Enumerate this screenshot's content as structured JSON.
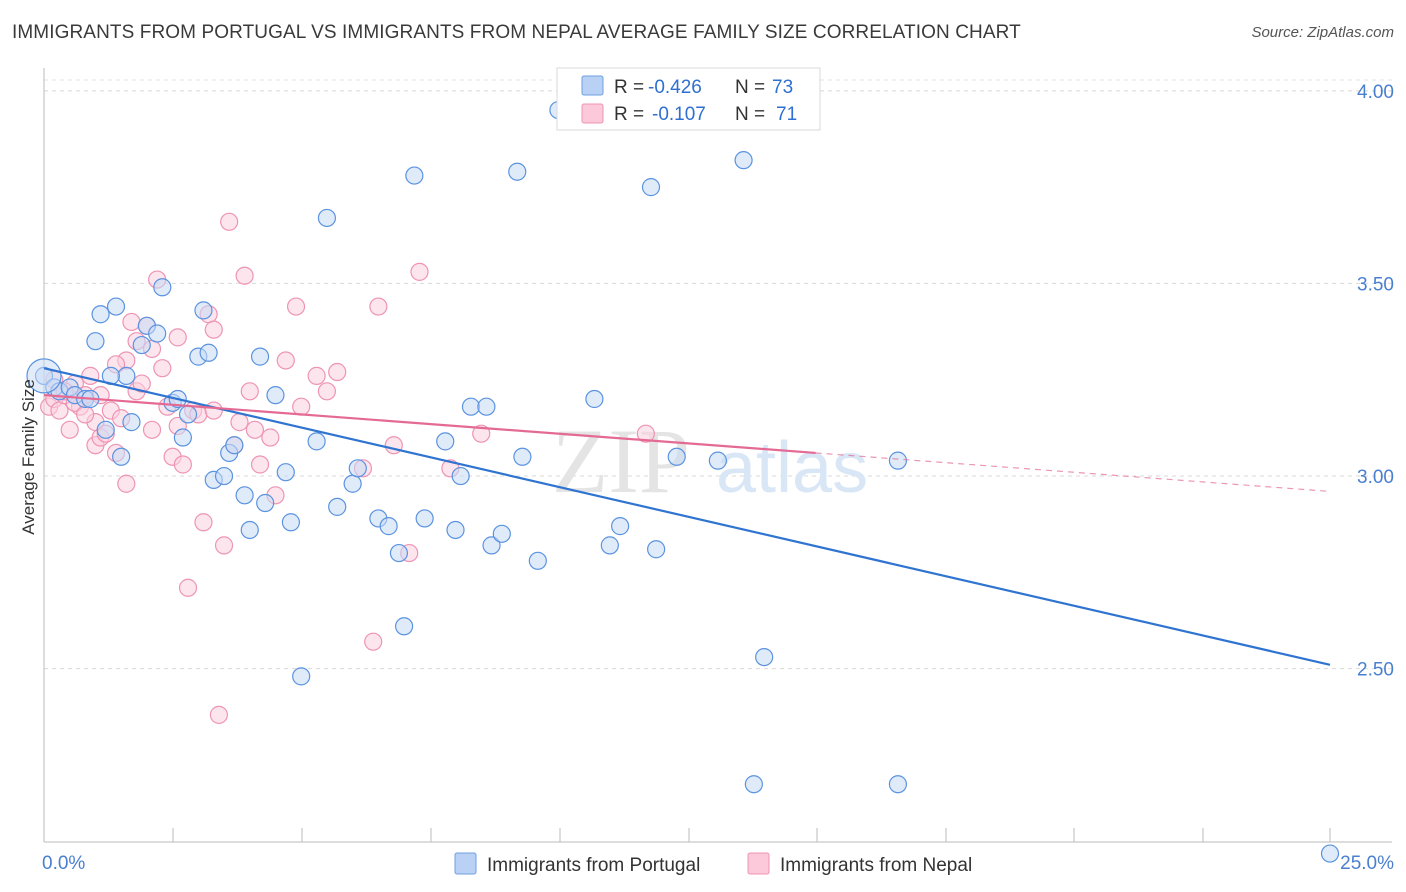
{
  "header": {
    "title": "IMMIGRANTS FROM PORTUGAL VS IMMIGRANTS FROM NEPAL AVERAGE FAMILY SIZE CORRELATION CHART",
    "source": "Source: ZipAtlas.com"
  },
  "watermark": {
    "zip": "ZIP",
    "atlas": "atlas"
  },
  "legend": {
    "rows": [
      {
        "r_label": "R =",
        "r_value": "-0.426",
        "n_label": "N =",
        "n_value": "73"
      },
      {
        "r_label": "R =",
        "r_value": "-0.107",
        "n_label": "N =",
        "n_value": "71"
      }
    ]
  },
  "chart_data": {
    "type": "scatter",
    "title": "IMMIGRANTS FROM PORTUGAL VS IMMIGRANTS FROM NEPAL AVERAGE FAMILY SIZE CORRELATION CHART",
    "xlabel": "",
    "ylabel": "Average Family Size",
    "xlim": [
      0,
      25
    ],
    "ylim": [
      2.05,
      4.08
    ],
    "x_tick_labels": [
      "0.0%",
      "25.0%"
    ],
    "y_ticks": [
      2.5,
      3.0,
      3.5,
      4.0
    ],
    "y_tick_labels": [
      "2.50",
      "3.00",
      "3.50",
      "4.00"
    ],
    "grid": true,
    "legend_position": "top-center",
    "colors": {
      "portugal": "#5b93e0",
      "nepal": "#f08db0",
      "portugal_line": "#2f74d0",
      "nepal_line": "#e46a93"
    },
    "series": [
      {
        "name": "Immigrants from Portugal",
        "r": -0.426,
        "n": 73,
        "trend": {
          "x": [
            0.0,
            25.0
          ],
          "y": [
            3.28,
            2.51
          ]
        },
        "points": [
          [
            0.0,
            3.26
          ],
          [
            0.2,
            3.23
          ],
          [
            0.3,
            3.22
          ],
          [
            0.5,
            3.23
          ],
          [
            0.6,
            3.21
          ],
          [
            0.8,
            3.2
          ],
          [
            1.0,
            3.35
          ],
          [
            1.1,
            3.42
          ],
          [
            1.4,
            3.44
          ],
          [
            1.5,
            3.05
          ],
          [
            1.6,
            3.26
          ],
          [
            1.2,
            3.12
          ],
          [
            1.7,
            3.14
          ],
          [
            1.9,
            3.34
          ],
          [
            2.0,
            3.39
          ],
          [
            2.2,
            3.37
          ],
          [
            2.3,
            3.49
          ],
          [
            2.5,
            3.19
          ],
          [
            2.7,
            3.1
          ],
          [
            2.8,
            3.16
          ],
          [
            3.0,
            3.31
          ],
          [
            3.1,
            3.43
          ],
          [
            3.2,
            3.32
          ],
          [
            3.3,
            2.99
          ],
          [
            3.5,
            3.0
          ],
          [
            3.6,
            3.06
          ],
          [
            3.7,
            3.08
          ],
          [
            3.9,
            2.95
          ],
          [
            4.0,
            2.86
          ],
          [
            4.2,
            3.31
          ],
          [
            4.3,
            2.93
          ],
          [
            4.5,
            3.21
          ],
          [
            4.7,
            3.01
          ],
          [
            4.8,
            2.88
          ],
          [
            5.0,
            2.48
          ],
          [
            5.3,
            3.09
          ],
          [
            5.5,
            3.67
          ],
          [
            5.7,
            2.92
          ],
          [
            6.0,
            2.98
          ],
          [
            6.1,
            3.02
          ],
          [
            6.5,
            2.89
          ],
          [
            6.7,
            2.87
          ],
          [
            6.9,
            2.8
          ],
          [
            7.0,
            2.61
          ],
          [
            7.2,
            3.78
          ],
          [
            7.4,
            2.89
          ],
          [
            7.8,
            3.09
          ],
          [
            8.0,
            2.86
          ],
          [
            8.1,
            3.0
          ],
          [
            8.3,
            3.18
          ],
          [
            8.6,
            3.18
          ],
          [
            8.7,
            2.82
          ],
          [
            8.9,
            2.85
          ],
          [
            9.2,
            3.79
          ],
          [
            9.3,
            3.05
          ],
          [
            9.6,
            2.78
          ],
          [
            10.0,
            3.95
          ],
          [
            10.7,
            3.2
          ],
          [
            11.0,
            2.82
          ],
          [
            11.2,
            2.87
          ],
          [
            11.8,
            3.75
          ],
          [
            11.9,
            2.81
          ],
          [
            12.3,
            3.05
          ],
          [
            13.1,
            3.04
          ],
          [
            13.6,
            3.82
          ],
          [
            14.0,
            2.53
          ],
          [
            13.8,
            2.2
          ],
          [
            16.6,
            3.04
          ],
          [
            16.6,
            2.2
          ],
          [
            25.0,
            2.02
          ],
          [
            1.3,
            3.26
          ],
          [
            2.6,
            3.2
          ],
          [
            0.9,
            3.2
          ]
        ]
      },
      {
        "name": "Immigrants from Nepal",
        "r": -0.107,
        "n": 71,
        "trend": {
          "x": [
            0.0,
            15.0
          ],
          "y": [
            3.21,
            3.06
          ]
        },
        "trend_extension": {
          "x": [
            15.0,
            25.0
          ],
          "y": [
            3.06,
            2.96
          ]
        },
        "points": [
          [
            0.1,
            3.18
          ],
          [
            0.2,
            3.2
          ],
          [
            0.3,
            3.17
          ],
          [
            0.4,
            3.21
          ],
          [
            0.5,
            3.12
          ],
          [
            0.6,
            3.24
          ],
          [
            0.7,
            3.18
          ],
          [
            0.8,
            3.21
          ],
          [
            0.9,
            3.26
          ],
          [
            1.0,
            3.14
          ],
          [
            1.0,
            3.08
          ],
          [
            1.1,
            3.21
          ],
          [
            1.1,
            3.1
          ],
          [
            1.3,
            3.17
          ],
          [
            1.4,
            3.06
          ],
          [
            1.5,
            3.15
          ],
          [
            1.6,
            3.3
          ],
          [
            1.6,
            2.98
          ],
          [
            1.7,
            3.4
          ],
          [
            1.8,
            3.22
          ],
          [
            1.9,
            3.24
          ],
          [
            2.0,
            3.39
          ],
          [
            2.1,
            3.33
          ],
          [
            2.2,
            3.51
          ],
          [
            2.3,
            3.28
          ],
          [
            2.4,
            3.18
          ],
          [
            2.5,
            3.05
          ],
          [
            2.6,
            3.13
          ],
          [
            2.7,
            3.03
          ],
          [
            2.8,
            2.71
          ],
          [
            2.9,
            3.17
          ],
          [
            3.0,
            3.16
          ],
          [
            3.1,
            2.88
          ],
          [
            3.2,
            3.42
          ],
          [
            3.3,
            3.38
          ],
          [
            3.4,
            2.38
          ],
          [
            3.5,
            2.82
          ],
          [
            3.6,
            3.66
          ],
          [
            3.7,
            3.08
          ],
          [
            3.8,
            3.14
          ],
          [
            3.9,
            3.52
          ],
          [
            4.0,
            3.22
          ],
          [
            4.2,
            3.03
          ],
          [
            4.4,
            3.1
          ],
          [
            4.5,
            2.95
          ],
          [
            4.7,
            3.3
          ],
          [
            4.9,
            3.44
          ],
          [
            5.0,
            3.18
          ],
          [
            5.3,
            3.26
          ],
          [
            5.5,
            3.22
          ],
          [
            5.7,
            3.27
          ],
          [
            6.2,
            3.02
          ],
          [
            6.4,
            2.57
          ],
          [
            6.5,
            3.44
          ],
          [
            6.8,
            3.08
          ],
          [
            7.1,
            2.8
          ],
          [
            7.3,
            3.53
          ],
          [
            7.9,
            3.02
          ],
          [
            8.5,
            3.11
          ],
          [
            11.7,
            3.11
          ],
          [
            0.2,
            3.25
          ],
          [
            0.4,
            3.22
          ],
          [
            0.6,
            3.19
          ],
          [
            0.8,
            3.16
          ],
          [
            1.2,
            3.11
          ],
          [
            1.4,
            3.29
          ],
          [
            1.8,
            3.35
          ],
          [
            2.1,
            3.12
          ],
          [
            2.6,
            3.36
          ],
          [
            3.3,
            3.17
          ],
          [
            4.1,
            3.12
          ]
        ]
      }
    ]
  },
  "bottom_legend": {
    "items": [
      {
        "label": "Immigrants from Portugal"
      },
      {
        "label": "Immigrants from Nepal"
      }
    ]
  }
}
